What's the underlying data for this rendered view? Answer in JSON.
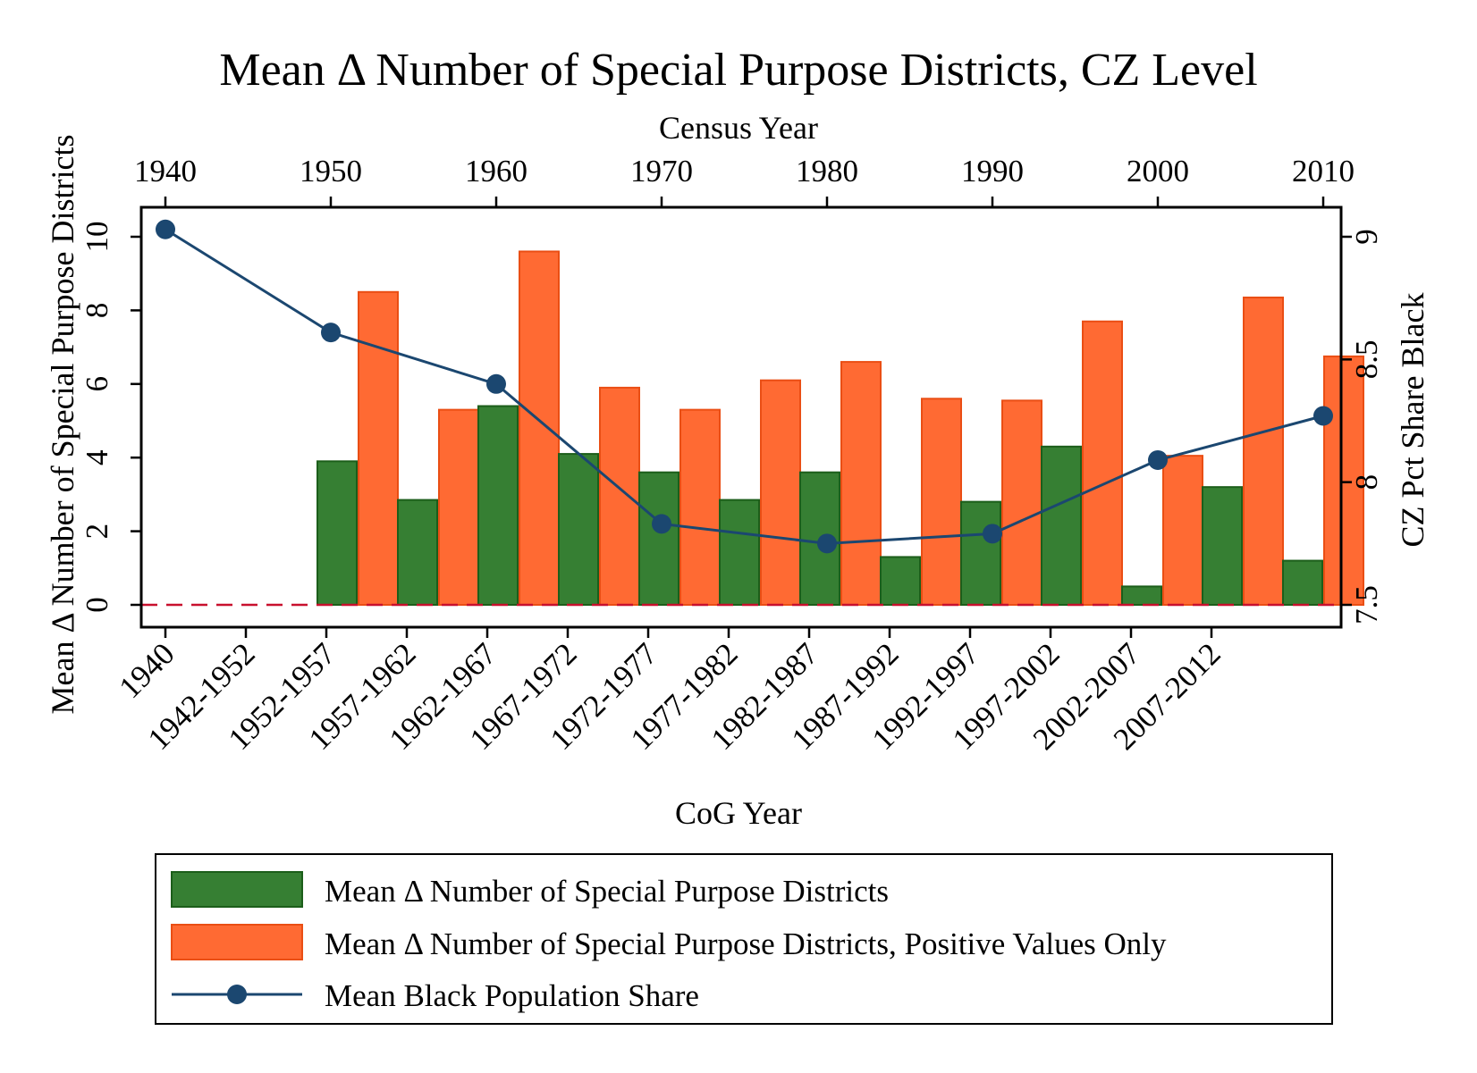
{
  "chart_data": {
    "type": "bar",
    "title": "Mean Δ Number of Special Purpose Districts, CZ Level",
    "xlabel": "CoG Year",
    "ylabel": "Mean Δ Number of Special Purpose Districts",
    "y2label": "CZ Pct Share Black",
    "top_xlabel": "Census Year",
    "categories": [
      "1940",
      "1942-1952",
      "1952-1957",
      "1957-1962",
      "1962-1967",
      "1967-1972",
      "1972-1977",
      "1977-1982",
      "1982-1987",
      "1987-1992",
      "1992-1997",
      "1997-2002",
      "2002-2007",
      "2007-2012"
    ],
    "ylim": [
      0,
      10
    ],
    "yticks": [
      0,
      2,
      4,
      6,
      8,
      10
    ],
    "y2lim": [
      7.5,
      9
    ],
    "y2ticks": [
      7.5,
      8,
      8.5,
      9
    ],
    "y2ticklabels": [
      "7.5",
      "8",
      "8.5",
      "9"
    ],
    "top_xlim": [
      1940,
      2010
    ],
    "top_xticks": [
      "1940",
      "1950",
      "1960",
      "1970",
      "1980",
      "1990",
      "2000",
      "2010"
    ],
    "reference_line_y": 0,
    "series": [
      {
        "name": "Mean Δ Number of Special Purpose Districts",
        "kind": "bar",
        "color": "#367f33",
        "edge": "#1c5e1a",
        "values": [
          null,
          3.9,
          2.85,
          5.4,
          4.1,
          3.6,
          2.85,
          3.6,
          1.3,
          2.8,
          4.3,
          0.5,
          3.2,
          1.2
        ]
      },
      {
        "name": "Mean Δ Number of Special Purpose Districts, Positive Values Only",
        "kind": "bar",
        "color": "#ff6a33",
        "edge": "#ea4e14",
        "values": [
          null,
          8.5,
          5.3,
          9.6,
          5.9,
          5.3,
          6.1,
          6.6,
          5.6,
          5.55,
          7.7,
          4.05,
          8.35,
          6.75
        ]
      },
      {
        "name": "Mean Black Population Share",
        "kind": "line",
        "color": "#1b4770",
        "x": [
          1940,
          1950,
          1960,
          1970,
          1980,
          1990,
          2000,
          2010
        ],
        "values": [
          9.03,
          8.61,
          8.4,
          7.83,
          7.75,
          7.79,
          8.09,
          8.27
        ]
      }
    ],
    "grid": false,
    "legend_position": "bottom"
  }
}
